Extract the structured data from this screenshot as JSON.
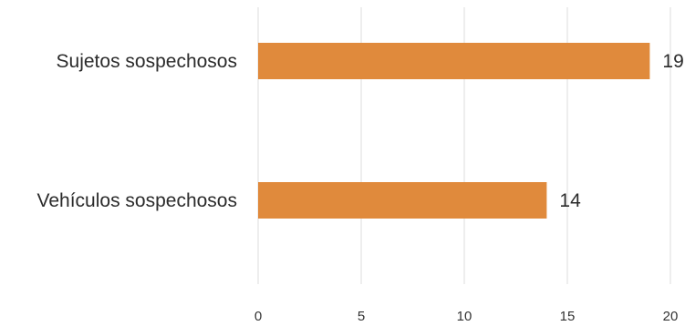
{
  "chart_data": {
    "type": "bar",
    "orientation": "horizontal",
    "categories": [
      "Sujetos sospechosos",
      "Vehículos sospechosos"
    ],
    "values": [
      19,
      14
    ],
    "data_labels": [
      "19",
      "14"
    ],
    "x_ticks": [
      "0",
      "5",
      "10",
      "15",
      "20"
    ],
    "xlim": [
      0,
      20
    ],
    "title": "",
    "xlabel": "",
    "ylabel": "",
    "grid": "vertical",
    "legend": "none",
    "bar_color": "#E08A3C",
    "grid_color": "#dcdcdc"
  }
}
